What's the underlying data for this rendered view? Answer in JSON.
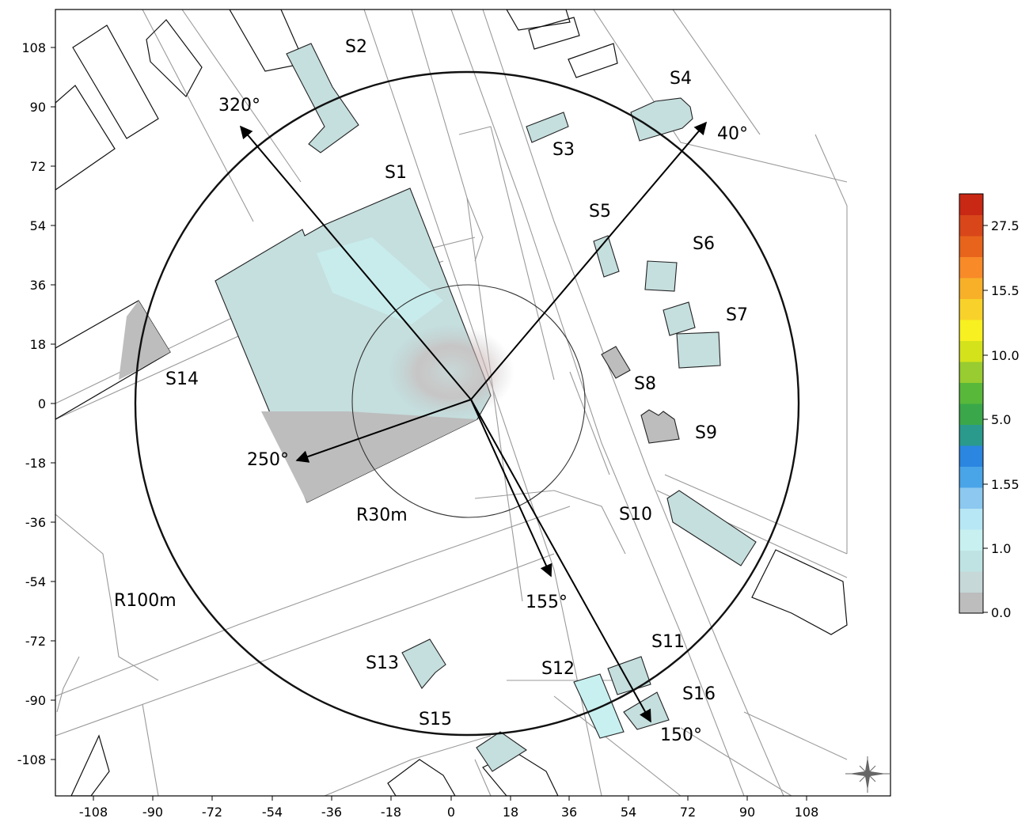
{
  "map": {
    "x_ticks": [
      "-108",
      "-90",
      "-72",
      "-54",
      "-36",
      "-18",
      "0",
      "18",
      "36",
      "54",
      "72",
      "90",
      "108"
    ],
    "y_ticks": [
      "108",
      "90",
      "72",
      "54",
      "36",
      "18",
      "0",
      "-18",
      "-36",
      "-54",
      "-72",
      "-90",
      "-108"
    ],
    "buildings": [
      "S1",
      "S2",
      "S3",
      "S4",
      "S5",
      "S6",
      "S7",
      "S8",
      "S9",
      "S10",
      "S11",
      "S12",
      "S13",
      "S14",
      "S15",
      "S16"
    ],
    "radius_labels": {
      "inner": "R30m",
      "outer": "R100m"
    },
    "direction_labels": {
      "d320": "320°",
      "d40": "40°",
      "d250": "250°",
      "d155": "155°",
      "d150": "150°"
    }
  },
  "colorbar": {
    "tick_labels": [
      "27.5",
      "15.5",
      "10.0",
      "5.0",
      "1.55",
      "1.0",
      "0.0"
    ],
    "colors": [
      "#bdbdbd",
      "#c6d8d8",
      "#bfe3e3",
      "#c8f0f0",
      "#b7e6f5",
      "#8cc8f0",
      "#4aa4e8",
      "#2a86e0",
      "#2a9a8c",
      "#3aa84a",
      "#58b83a",
      "#98cc30",
      "#d4e21c",
      "#f8f020",
      "#f8d22a",
      "#f8b028",
      "#f88a28",
      "#e8641c",
      "#d8461a",
      "#c82814"
    ]
  },
  "compass": {
    "icon": "compass-rose-icon"
  }
}
